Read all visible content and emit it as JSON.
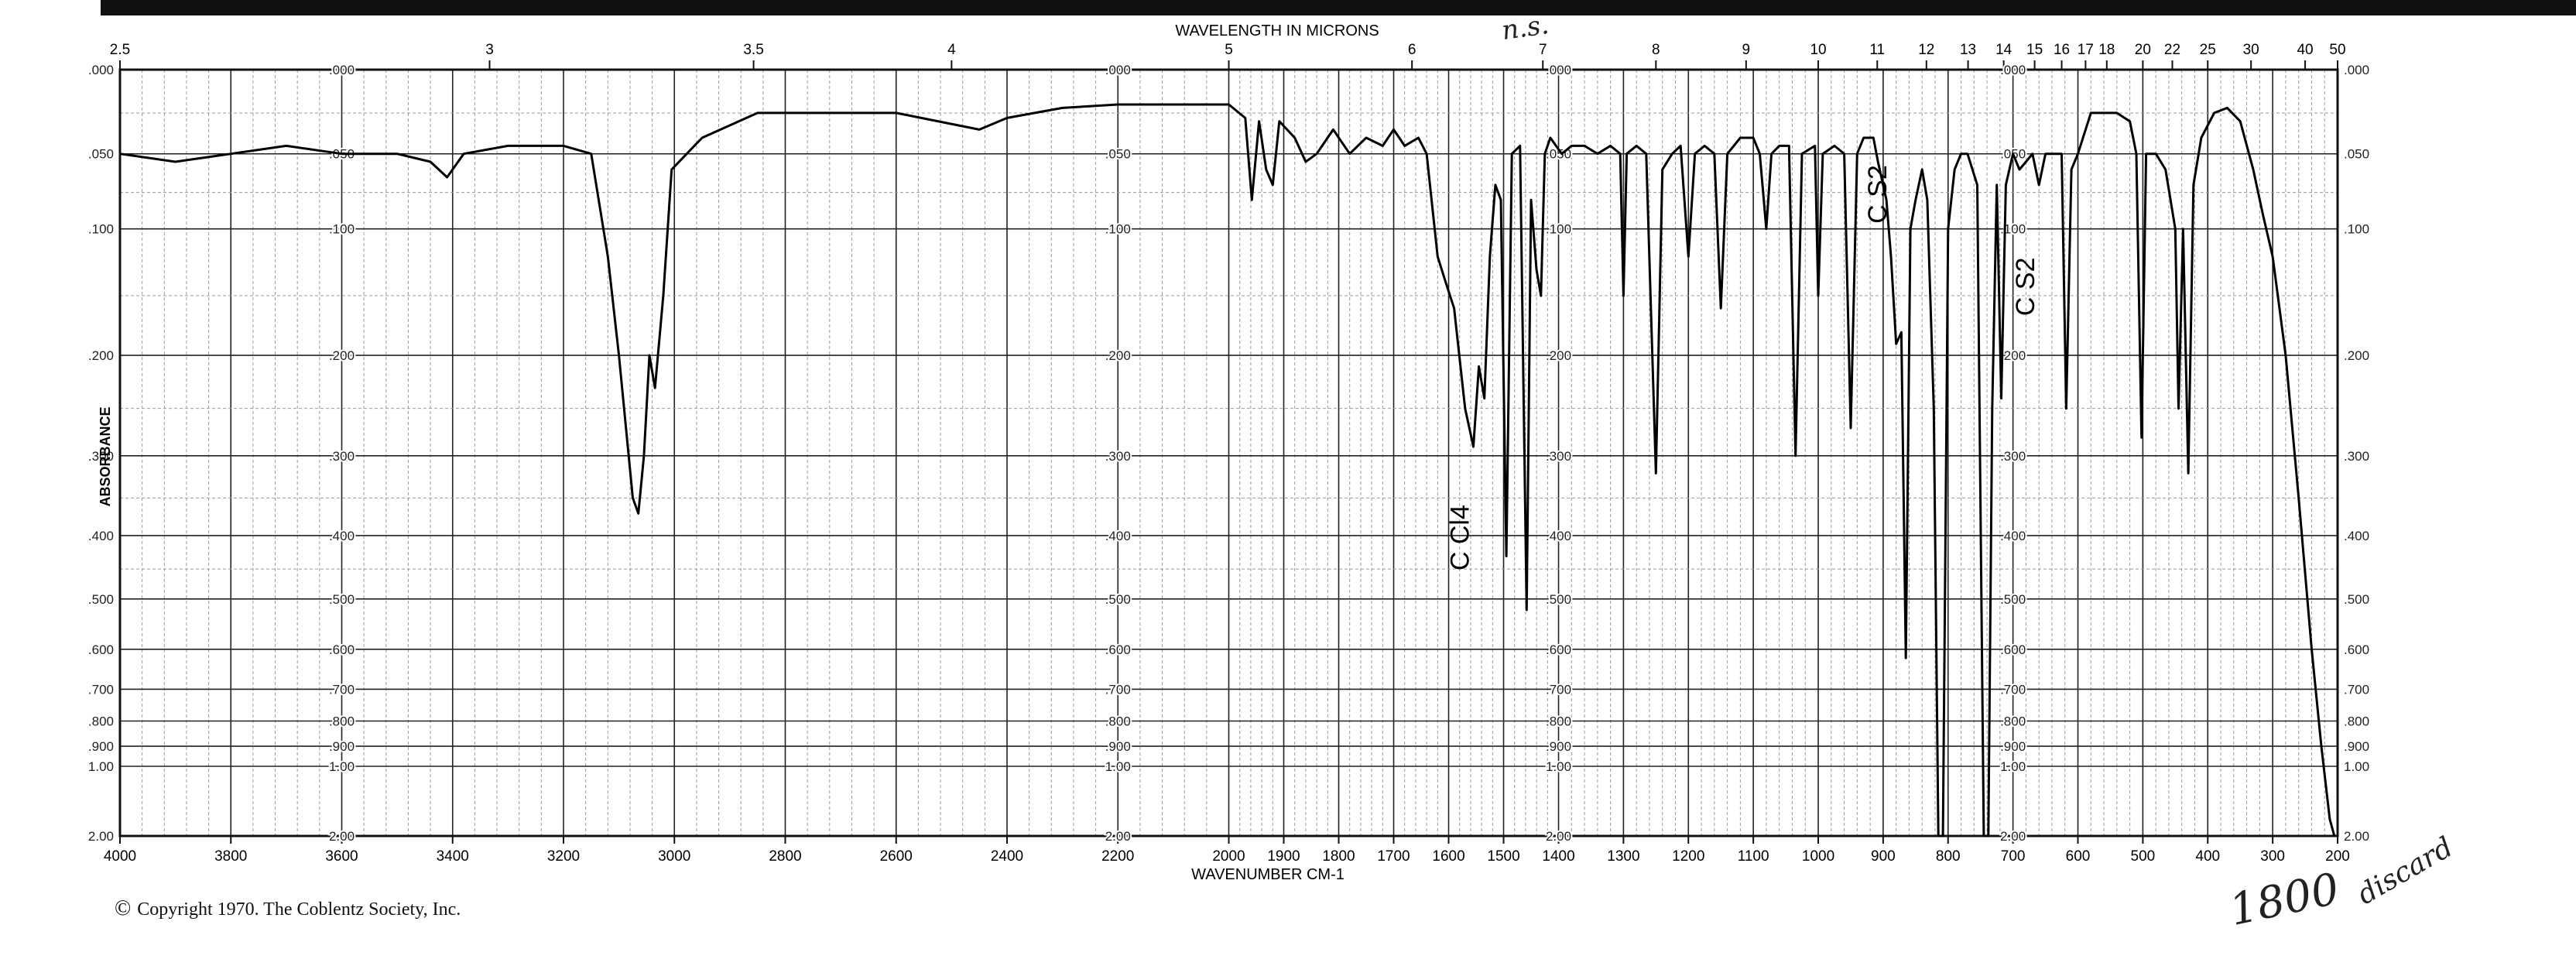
{
  "chart_data": {
    "type": "line",
    "title": "",
    "top_axis_label": "WAVELENGTH IN MICRONS",
    "xlabel": "WAVENUMBER CM-1",
    "ylabel": "ABSORBANCE",
    "x_segments": [
      {
        "from": 4000,
        "to": 2000,
        "tick_step": 200
      },
      {
        "from": 2000,
        "to": 1400,
        "tick_step": 100
      },
      {
        "from": 1400,
        "to": 200,
        "tick_step": 100
      }
    ],
    "x_tick_labels": [
      "4000",
      "3800",
      "3600",
      "3400",
      "3200",
      "3000",
      "2800",
      "2600",
      "2400",
      "2200",
      "2000",
      "1900",
      "1800",
      "1700",
      "1600",
      "1500",
      "1400",
      "1300",
      "1200",
      "1100",
      "1000",
      "900",
      "800",
      "700",
      "600",
      "500",
      "400",
      "300",
      "200"
    ],
    "top_tick_labels": [
      "2.5",
      "3",
      "3.5",
      "4",
      "5",
      "6",
      "7",
      "8",
      "9",
      "10",
      "11",
      "12",
      "13",
      "14",
      "15",
      "16",
      "17",
      "18",
      "20",
      "22",
      "25",
      "30",
      "40",
      "50"
    ],
    "y_scale": "log",
    "ylim": [
      0.0,
      2.0
    ],
    "y_tick_labels": [
      ".000",
      ".050",
      ".100",
      ".200",
      ".300",
      ".400",
      ".500",
      ".600",
      ".700",
      ".800",
      ".900",
      "1.00",
      "2.00"
    ],
    "grid": true,
    "series": [
      {
        "points": [
          [
            4000,
            0.05
          ],
          [
            3900,
            0.055
          ],
          [
            3800,
            0.05
          ],
          [
            3700,
            0.045
          ],
          [
            3600,
            0.05
          ],
          [
            3500,
            0.05
          ],
          [
            3440,
            0.055
          ],
          [
            3410,
            0.065
          ],
          [
            3380,
            0.05
          ],
          [
            3300,
            0.045
          ],
          [
            3200,
            0.045
          ],
          [
            3150,
            0.05
          ],
          [
            3120,
            0.12
          ],
          [
            3100,
            0.2
          ],
          [
            3075,
            0.35
          ],
          [
            3065,
            0.37
          ],
          [
            3055,
            0.3
          ],
          [
            3045,
            0.2
          ],
          [
            3035,
            0.23
          ],
          [
            3020,
            0.15
          ],
          [
            3005,
            0.06
          ],
          [
            2950,
            0.04
          ],
          [
            2850,
            0.025
          ],
          [
            2700,
            0.025
          ],
          [
            2600,
            0.025
          ],
          [
            2450,
            0.035
          ],
          [
            2400,
            0.028
          ],
          [
            2300,
            0.022
          ],
          [
            2200,
            0.02
          ],
          [
            2100,
            0.02
          ],
          [
            2000,
            0.02
          ],
          [
            1970,
            0.028
          ],
          [
            1958,
            0.08
          ],
          [
            1945,
            0.03
          ],
          [
            1932,
            0.06
          ],
          [
            1920,
            0.07
          ],
          [
            1908,
            0.03
          ],
          [
            1880,
            0.04
          ],
          [
            1860,
            0.055
          ],
          [
            1840,
            0.05
          ],
          [
            1810,
            0.035
          ],
          [
            1780,
            0.05
          ],
          [
            1750,
            0.04
          ],
          [
            1720,
            0.045
          ],
          [
            1700,
            0.035
          ],
          [
            1680,
            0.045
          ],
          [
            1655,
            0.04
          ],
          [
            1640,
            0.05
          ],
          [
            1620,
            0.12
          ],
          [
            1605,
            0.14
          ],
          [
            1590,
            0.16
          ],
          [
            1570,
            0.25
          ],
          [
            1555,
            0.29
          ],
          [
            1545,
            0.21
          ],
          [
            1535,
            0.24
          ],
          [
            1525,
            0.12
          ],
          [
            1515,
            0.07
          ],
          [
            1505,
            0.08
          ],
          [
            1495,
            0.43
          ],
          [
            1485,
            0.05
          ],
          [
            1470,
            0.045
          ],
          [
            1458,
            0.52
          ],
          [
            1450,
            0.08
          ],
          [
            1440,
            0.13
          ],
          [
            1432,
            0.15
          ],
          [
            1425,
            0.05
          ],
          [
            1415,
            0.04
          ],
          [
            1395,
            0.05
          ],
          [
            1380,
            0.045
          ],
          [
            1360,
            0.045
          ],
          [
            1340,
            0.05
          ],
          [
            1320,
            0.045
          ],
          [
            1305,
            0.05
          ],
          [
            1300,
            0.15
          ],
          [
            1295,
            0.05
          ],
          [
            1280,
            0.045
          ],
          [
            1265,
            0.05
          ],
          [
            1250,
            0.32
          ],
          [
            1240,
            0.06
          ],
          [
            1225,
            0.05
          ],
          [
            1212,
            0.045
          ],
          [
            1200,
            0.12
          ],
          [
            1190,
            0.05
          ],
          [
            1175,
            0.045
          ],
          [
            1160,
            0.05
          ],
          [
            1150,
            0.16
          ],
          [
            1140,
            0.05
          ],
          [
            1120,
            0.04
          ],
          [
            1100,
            0.04
          ],
          [
            1090,
            0.05
          ],
          [
            1080,
            0.1
          ],
          [
            1072,
            0.05
          ],
          [
            1060,
            0.045
          ],
          [
            1045,
            0.045
          ],
          [
            1035,
            0.3
          ],
          [
            1025,
            0.05
          ],
          [
            1005,
            0.045
          ],
          [
            1000,
            0.15
          ],
          [
            993,
            0.05
          ],
          [
            975,
            0.045
          ],
          [
            960,
            0.05
          ],
          [
            950,
            0.27
          ],
          [
            940,
            0.05
          ],
          [
            930,
            0.04
          ],
          [
            915,
            0.04
          ],
          [
            908,
            0.055
          ],
          [
            895,
            0.08
          ],
          [
            888,
            0.12
          ],
          [
            880,
            0.19
          ],
          [
            872,
            0.18
          ],
          [
            865,
            0.62
          ],
          [
            858,
            0.1
          ],
          [
            850,
            0.08
          ],
          [
            840,
            0.06
          ],
          [
            832,
            0.08
          ],
          [
            822,
            0.25
          ],
          [
            815,
            2.0
          ],
          [
            808,
            2.0
          ],
          [
            800,
            0.1
          ],
          [
            790,
            0.06
          ],
          [
            780,
            0.05
          ],
          [
            770,
            0.05
          ],
          [
            755,
            0.07
          ],
          [
            745,
            2.0
          ],
          [
            738,
            2.0
          ],
          [
            732,
            0.25
          ],
          [
            725,
            0.07
          ],
          [
            718,
            0.24
          ],
          [
            711,
            0.07
          ],
          [
            700,
            0.05
          ],
          [
            690,
            0.06
          ],
          [
            680,
            0.055
          ],
          [
            670,
            0.05
          ],
          [
            660,
            0.07
          ],
          [
            650,
            0.05
          ],
          [
            640,
            0.05
          ],
          [
            625,
            0.05
          ],
          [
            618,
            0.25
          ],
          [
            610,
            0.06
          ],
          [
            600,
            0.05
          ],
          [
            580,
            0.025
          ],
          [
            560,
            0.025
          ],
          [
            540,
            0.025
          ],
          [
            520,
            0.03
          ],
          [
            510,
            0.05
          ],
          [
            502,
            0.28
          ],
          [
            495,
            0.05
          ],
          [
            480,
            0.05
          ],
          [
            465,
            0.06
          ],
          [
            450,
            0.1
          ],
          [
            445,
            0.25
          ],
          [
            438,
            0.1
          ],
          [
            430,
            0.32
          ],
          [
            422,
            0.07
          ],
          [
            410,
            0.04
          ],
          [
            390,
            0.025
          ],
          [
            370,
            0.022
          ],
          [
            350,
            0.03
          ],
          [
            330,
            0.06
          ],
          [
            315,
            0.09
          ],
          [
            300,
            0.12
          ],
          [
            280,
            0.2
          ],
          [
            260,
            0.35
          ],
          [
            240,
            0.6
          ],
          [
            225,
            0.9
          ],
          [
            212,
            1.5
          ],
          [
            205,
            2.0
          ]
        ]
      }
    ],
    "annotations": [
      {
        "text": "C Cl4",
        "x": 1555,
        "y": 0.29
      },
      {
        "text": "C S2",
        "x": 660,
        "y": 0.08
      },
      {
        "text": "C S2",
        "x": 888,
        "y": 0.07
      }
    ]
  },
  "page": {
    "copyright_symbol": "©",
    "copyright_text": "Copyright 1970.  The Coblentz Society, Inc.",
    "handwritten_1800": "1800",
    "handwritten_discard": "discard",
    "handwritten_top": "n.s."
  }
}
